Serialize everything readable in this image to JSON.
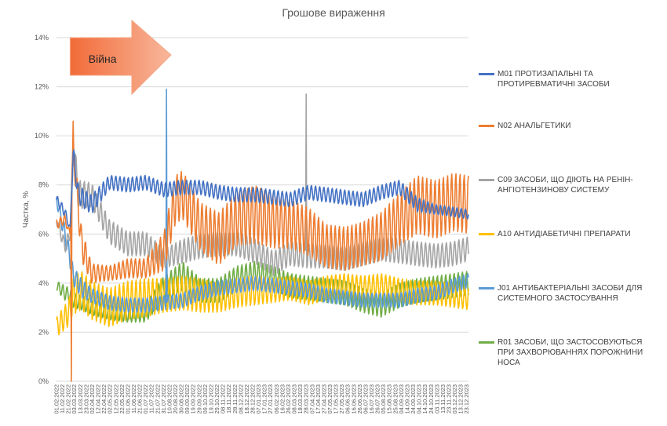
{
  "chart_data": {
    "type": "line",
    "title": "Грошове вираження",
    "ylabel": "Частка, %",
    "ylim": [
      0,
      14
    ],
    "yticks": [
      "0%",
      "2%",
      "4%",
      "6%",
      "8%",
      "10%",
      "12%",
      "14%"
    ],
    "x_tick_labels": [
      "01.02.2022",
      "11.02.2022",
      "21.02.2022",
      "03.03.2022",
      "13.03.2022",
      "23.03.2022",
      "02.04.2022",
      "12.04.2022",
      "22.04.2022",
      "02.05.2022",
      "12.05.2022",
      "22.05.2022",
      "01.06.2022",
      "11.06.2022",
      "21.06.2022",
      "01.07.2022",
      "11.07.2022",
      "21.07.2022",
      "31.07.2022",
      "10.08.2022",
      "20.08.2022",
      "30.08.2022",
      "09.09.2022",
      "19.09.2022",
      "29.09.2022",
      "09.10.2022",
      "19.10.2022",
      "29.10.2022",
      "08.11.2022",
      "18.11.2022",
      "28.11.2022",
      "08.12.2022",
      "18.12.2022",
      "28.12.2022",
      "07.01.2023",
      "17.01.2023",
      "27.01.2023",
      "06.02.2023",
      "16.02.2023",
      "26.02.2023",
      "08.03.2023",
      "18.03.2023",
      "28.03.2023",
      "07.04.2023",
      "17.04.2023",
      "27.04.2023",
      "07.05.2023",
      "17.05.2023",
      "27.05.2023",
      "06.06.2023",
      "16.06.2023",
      "26.06.2023",
      "06.07.2023",
      "16.07.2023",
      "26.07.2023",
      "05.08.2023",
      "15.08.2023",
      "25.08.2023",
      "04.09.2023",
      "14.09.2023",
      "24.09.2023",
      "04.10.2023",
      "14.10.2023",
      "24.10.2023",
      "03.11.2023",
      "13.11.2023",
      "23.11.2023",
      "03.12.2023",
      "13.12.2023",
      "23.12.2023"
    ],
    "annotation": {
      "text": "Війна",
      "start": "24.02.2022",
      "end": "10.08.2022"
    },
    "series": [
      {
        "key": "M01",
        "name": "M01 ПРОТИЗАПАЛЬНІ ТА ПРОТИРЕВМАТИЧНІ ЗАСОБИ",
        "color": "#4472c4",
        "x": [
          "01.02.2022",
          "15.02.2022",
          "24.02.2022",
          "01.03.2022",
          "10.03.2022",
          "01.04.2022",
          "01.05.2022",
          "01.06.2022",
          "01.07.2022",
          "01.08.2022",
          "01.09.2022",
          "01.10.2022",
          "01.11.2022",
          "01.12.2022",
          "01.01.2023",
          "01.02.2023",
          "01.03.2023",
          "01.04.2023",
          "01.05.2023",
          "01.06.2023",
          "01.07.2023",
          "01.08.2023",
          "01.09.2023",
          "01.10.2023",
          "01.11.2023",
          "01.12.2023",
          "26.12.2023"
        ],
        "y": [
          7.4,
          6.9,
          6.2,
          9.3,
          7.6,
          7.2,
          8.1,
          8.0,
          8.1,
          7.8,
          7.9,
          7.9,
          7.7,
          7.6,
          7.6,
          7.5,
          7.4,
          7.7,
          7.6,
          7.5,
          7.4,
          7.7,
          7.9,
          7.2,
          7.0,
          6.9,
          6.8
        ],
        "amplitude": [
          0.2,
          0.2,
          0.1,
          0.4,
          0.4,
          0.4,
          0.3,
          0.3,
          0.3,
          0.3,
          0.3,
          0.3,
          0.3,
          0.3,
          0.3,
          0.3,
          0.3,
          0.3,
          0.3,
          0.3,
          0.3,
          0.3,
          0.3,
          0.3,
          0.2,
          0.2,
          0.2
        ]
      },
      {
        "key": "N02",
        "name": "N02 АНАЛЬГЕТИКИ",
        "color": "#ed7d31",
        "x": [
          "01.02.2022",
          "15.02.2022",
          "24.02.2022",
          "01.03.2022",
          "15.03.2022",
          "01.04.2022",
          "01.05.2022",
          "01.06.2022",
          "01.07.2022",
          "01.08.2022",
          "20.08.2022",
          "01.09.2022",
          "01.10.2022",
          "01.11.2022",
          "01.12.2022",
          "01.01.2023",
          "01.02.2023",
          "01.03.2023",
          "01.04.2023",
          "01.05.2023",
          "01.06.2023",
          "01.07.2023",
          "01.08.2023",
          "01.09.2023",
          "01.10.2023",
          "01.11.2023",
          "01.12.2023",
          "26.12.2023"
        ],
        "y": [
          6.4,
          6.6,
          6.0,
          9.5,
          5.6,
          4.4,
          4.4,
          4.6,
          4.6,
          5.3,
          7.4,
          7.6,
          6.3,
          5.8,
          6.6,
          6.8,
          6.5,
          6.4,
          6.1,
          5.5,
          5.4,
          5.6,
          5.9,
          6.6,
          7.2,
          7.0,
          7.3,
          7.2
        ],
        "amplitude": [
          0.2,
          0.2,
          0.1,
          0.5,
          0.7,
          0.4,
          0.3,
          0.4,
          0.4,
          0.8,
          1.0,
          1.0,
          1.0,
          1.1,
          1.1,
          1.2,
          1.1,
          1.0,
          1.0,
          0.9,
          0.9,
          0.9,
          1.0,
          1.1,
          1.2,
          1.2,
          1.2,
          1.2
        ]
      },
      {
        "key": "C09",
        "name": "C09 ЗАСОБИ, ЩО ДІЮТЬ НА РЕНІН-АНГІОТЕНЗИНОВУ СИСТЕМУ",
        "color": "#a5a5a5",
        "x": [
          "01.02.2022",
          "15.02.2022",
          "24.02.2022",
          "01.03.2022",
          "10.03.2022",
          "01.04.2022",
          "01.05.2022",
          "01.06.2022",
          "01.07.2022",
          "01.08.2022",
          "01.09.2022",
          "01.10.2022",
          "01.11.2022",
          "01.12.2022",
          "01.01.2023",
          "01.02.2023",
          "01.03.2023",
          "01.04.2023",
          "01.05.2023",
          "01.06.2023",
          "01.07.2023",
          "01.08.2023",
          "01.09.2023",
          "01.10.2023",
          "01.11.2023",
          "01.12.2023",
          "26.12.2023"
        ],
        "y": [
          6.6,
          5.5,
          6.0,
          9.7,
          7.6,
          7.6,
          6.1,
          5.6,
          5.6,
          5.0,
          5.3,
          5.5,
          5.6,
          5.6,
          5.3,
          4.8,
          5.2,
          5.1,
          5.1,
          5.0,
          5.2,
          5.4,
          5.3,
          5.2,
          5.1,
          5.2,
          5.4
        ],
        "amplitude": [
          0.2,
          0.3,
          0.2,
          0.6,
          0.6,
          0.5,
          0.5,
          0.5,
          0.5,
          0.4,
          0.5,
          0.5,
          0.5,
          0.5,
          0.5,
          0.5,
          0.5,
          0.5,
          0.5,
          0.5,
          0.5,
          0.5,
          0.5,
          0.5,
          0.5,
          0.5,
          0.5
        ]
      },
      {
        "key": "A10",
        "name": "A10 АНТИДІАБЕТИЧНІ ПРЕПАРАТИ",
        "color": "#ffc000",
        "x": [
          "01.02.2022",
          "15.02.2022",
          "24.02.2022",
          "01.03.2022",
          "15.03.2022",
          "01.04.2022",
          "01.05.2022",
          "01.06.2022",
          "01.07.2022",
          "01.08.2022",
          "01.09.2022",
          "01.10.2022",
          "01.11.2022",
          "01.12.2022",
          "01.01.2023",
          "01.02.2023",
          "01.03.2023",
          "01.04.2023",
          "01.05.2023",
          "01.06.2023",
          "01.07.2023",
          "01.08.2023",
          "01.09.2023",
          "01.10.2023",
          "01.11.2023",
          "01.12.2023",
          "26.12.2023"
        ],
        "y": [
          2.2,
          2.6,
          2.9,
          3.5,
          3.7,
          3.3,
          3.0,
          3.3,
          3.4,
          3.5,
          3.6,
          3.5,
          3.4,
          3.6,
          3.7,
          3.7,
          3.8,
          3.6,
          3.8,
          3.9,
          3.8,
          3.9,
          3.7,
          3.6,
          3.6,
          3.5,
          3.4
        ],
        "amplitude": [
          0.4,
          0.5,
          0.6,
          0.8,
          0.8,
          0.8,
          0.8,
          0.8,
          0.8,
          0.7,
          0.7,
          0.7,
          0.6,
          0.6,
          0.6,
          0.5,
          0.5,
          0.5,
          0.5,
          0.5,
          0.5,
          0.5,
          0.5,
          0.5,
          0.5,
          0.5,
          0.5
        ]
      },
      {
        "key": "J01",
        "name": "J01 АНТИБАКТЕРІАЛЬНІ ЗАСОБИ ДЛЯ СИСТЕМНОГО ЗАСТОСУВАННЯ",
        "color": "#5b9bd5",
        "x": [
          "01.02.2022",
          "15.02.2022",
          "24.02.2022",
          "01.03.2022",
          "15.03.2022",
          "01.04.2022",
          "01.05.2022",
          "01.06.2022",
          "01.07.2022",
          "01.08.2022",
          "01.09.2022",
          "01.10.2022",
          "01.11.2022",
          "01.12.2022",
          "01.01.2023",
          "01.02.2023",
          "01.03.2023",
          "01.04.2023",
          "01.05.2023",
          "01.06.2023",
          "01.07.2023",
          "01.08.2023",
          "01.09.2023",
          "01.10.2023",
          "01.11.2023",
          "01.12.2023",
          "26.12.2023"
        ],
        "y": [
          7.4,
          6.0,
          5.0,
          4.3,
          3.8,
          3.5,
          3.2,
          3.1,
          3.1,
          3.2,
          3.3,
          3.6,
          3.8,
          3.9,
          4.0,
          3.9,
          3.8,
          3.7,
          3.5,
          3.4,
          3.3,
          3.3,
          3.3,
          3.5,
          3.6,
          3.9,
          4.1
        ],
        "amplitude": [
          0.2,
          0.4,
          0.4,
          0.4,
          0.4,
          0.3,
          0.3,
          0.3,
          0.3,
          0.3,
          0.3,
          0.3,
          0.3,
          0.3,
          0.3,
          0.3,
          0.3,
          0.3,
          0.3,
          0.3,
          0.3,
          0.3,
          0.3,
          0.3,
          0.3,
          0.3,
          0.3
        ]
      },
      {
        "key": "R01",
        "name": "R01 ЗАСОБИ, ЩО ЗАСТОСОВУЮТЬСЯ ПРИ ЗАХВОРЮВАННЯХ ПОРОЖНИНИ НОСА",
        "color": "#70ad47",
        "x": [
          "01.02.2022",
          "15.02.2022",
          "24.02.2022",
          "01.03.2022",
          "15.03.2022",
          "01.04.2022",
          "01.05.2022",
          "01.06.2022",
          "01.07.2022",
          "01.08.2022",
          "01.09.2022",
          "01.10.2022",
          "01.11.2022",
          "01.12.2022",
          "01.01.2023",
          "01.02.2023",
          "01.03.2023",
          "01.04.2023",
          "01.05.2023",
          "01.06.2023",
          "01.07.2023",
          "01.08.2023",
          "01.09.2023",
          "01.10.2023",
          "01.11.2023",
          "01.12.2023",
          "26.12.2023"
        ],
        "y": [
          3.9,
          3.6,
          3.5,
          3.3,
          3.2,
          3.0,
          2.8,
          2.7,
          2.8,
          3.8,
          4.3,
          3.7,
          3.7,
          4.2,
          4.4,
          4.2,
          3.9,
          3.8,
          3.7,
          3.6,
          3.3,
          3.1,
          3.5,
          3.7,
          3.8,
          3.9,
          4.0
        ],
        "amplitude": [
          0.2,
          0.3,
          0.3,
          0.3,
          0.3,
          0.3,
          0.3,
          0.3,
          0.4,
          0.5,
          0.6,
          0.5,
          0.5,
          0.5,
          0.5,
          0.5,
          0.5,
          0.5,
          0.5,
          0.5,
          0.5,
          0.5,
          0.5,
          0.5,
          0.5,
          0.5,
          0.5
        ]
      }
    ],
    "spikes": [
      {
        "series": "N02",
        "date": "01.03.2022",
        "value": 10.6
      },
      {
        "series": "N02",
        "date": "26.02.2022",
        "value": 0.0
      },
      {
        "series": "J01",
        "date": "05.08.2022",
        "value": 11.9
      },
      {
        "series": "C09",
        "date": "28.03.2023",
        "value": 11.7
      }
    ],
    "grid": "horizontal",
    "legend": "right"
  }
}
